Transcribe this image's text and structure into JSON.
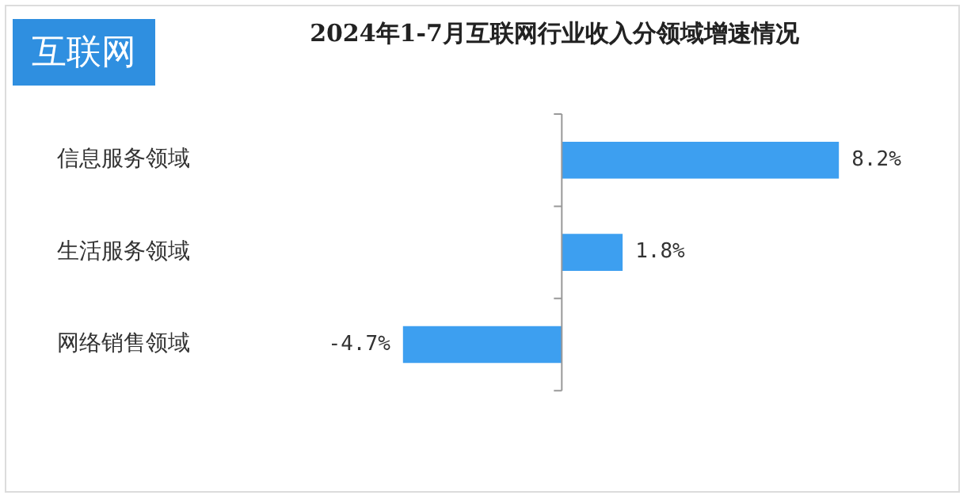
{
  "chart_data": {
    "type": "bar",
    "orientation": "horizontal",
    "title": "2024年1-7月互联网行业收入分领域增速情况",
    "annotations": [
      "互联网"
    ],
    "categories": [
      "信息服务领域",
      "生活服务领域",
      "网络销售领域"
    ],
    "values": [
      8.2,
      1.8,
      -4.7
    ],
    "value_labels": [
      "8.2%",
      "1.8%",
      "-4.7%"
    ],
    "color": "#3d9ff0",
    "tick_labels": "y",
    "grid": false,
    "legend": false
  }
}
